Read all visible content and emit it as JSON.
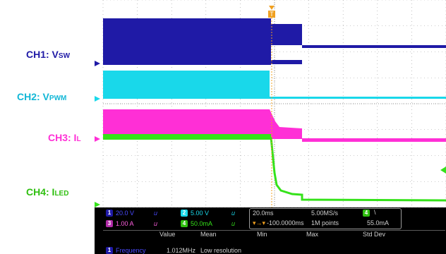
{
  "labels": {
    "ch1": {
      "main": "CH1: V",
      "sub": "SW",
      "color": "#1f1aa6"
    },
    "ch2": {
      "main": "CH2: V",
      "sub": "PWM",
      "color": "#12b7d6"
    },
    "ch3": {
      "main": "CH3: I",
      "sub": "L",
      "color": "#ff2fd6"
    },
    "ch4": {
      "main": "CH4: I",
      "sub": "LED",
      "color": "#2fbf10"
    }
  },
  "scope": {
    "trigger_marker": "T",
    "channels": [
      {
        "num": "1",
        "scale": "20.0 V",
        "color": "#1f1aa6"
      },
      {
        "num": "2",
        "scale": "5.00 V",
        "color": "#12b7d6"
      },
      {
        "num": "3",
        "scale": "1.00 A",
        "color": "#ff2fd6"
      },
      {
        "num": "4",
        "scale": "50.0mA",
        "color": "#2fbf10"
      }
    ],
    "timebase": "20.0ms",
    "trigger_position": "-100.0000ms",
    "sample_rate": "5.00MS/s",
    "record_length": "1M points",
    "trigger_channel": "4",
    "trigger_slope": "\\",
    "trigger_level": "55.0mA",
    "measure_headers": [
      "Value",
      "Mean",
      "Min",
      "Max",
      "Std Dev"
    ],
    "measure_row": {
      "num": "1",
      "name": "Frequency",
      "value": "1.012MHz",
      "mean": "Low resolution"
    }
  }
}
